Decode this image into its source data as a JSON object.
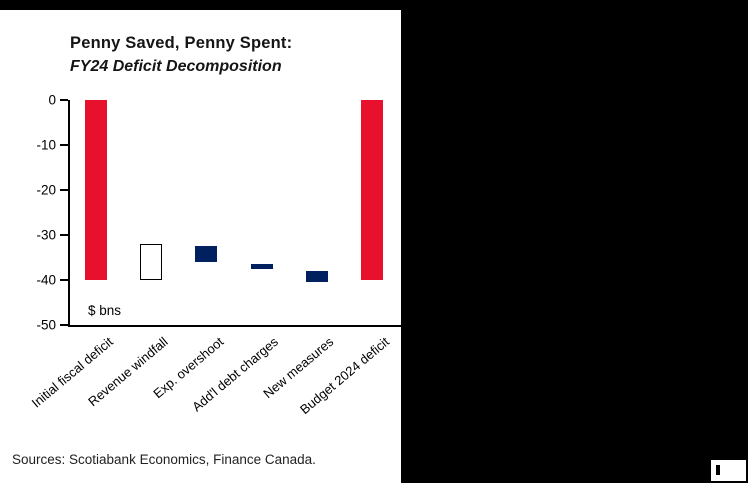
{
  "header": {
    "title_line1": "Penny Saved, Penny Spent:",
    "title_line2": "FY24 Deficit Decomposition"
  },
  "chart_data": {
    "type": "bar",
    "subtype": "waterfall",
    "title": "Penny Saved, Penny Spent: FY24 Deficit Decomposition",
    "unit_label": "$ bns",
    "ylabel": "",
    "xlabel": "",
    "ylim": [
      -50,
      0
    ],
    "yticks": [
      0,
      -10,
      -20,
      -30,
      -40,
      -50
    ],
    "grid": false,
    "legend": "none",
    "categories": [
      {
        "label": "Initial fiscal deficit",
        "from": 0,
        "to": -40,
        "color": "red"
      },
      {
        "label": "Revenue windfall",
        "from": -40,
        "to": -32,
        "color": "white"
      },
      {
        "label": "Exp. overshoot",
        "from": -32.5,
        "to": -36,
        "color": "navy"
      },
      {
        "label": "Add'l debt charges",
        "from": -36.5,
        "to": -37.5,
        "color": "navy"
      },
      {
        "label": "New measures",
        "from": -38,
        "to": -40.5,
        "color": "navy"
      },
      {
        "label": "Budget 2024 deficit",
        "from": 0,
        "to": -40,
        "color": "red"
      }
    ]
  },
  "colors": {
    "red": "#e8112d",
    "navy": "#002060",
    "axis": "#000000",
    "background": "#ffffff",
    "surround": "#000000"
  },
  "footer": {
    "sources": "Sources: Scotiabank Economics, Finance Canada."
  }
}
